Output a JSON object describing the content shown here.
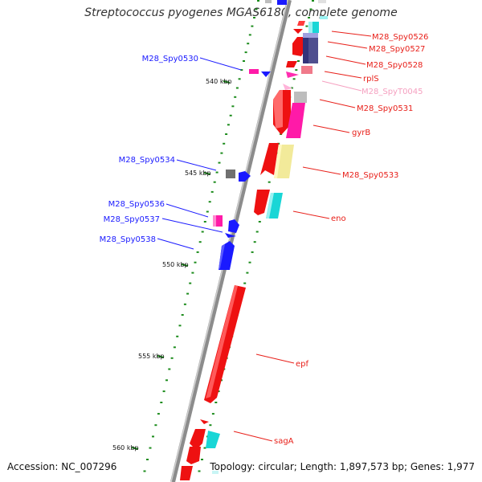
{
  "title": "Streptococcus pyogenes MGAS6180, complete genome",
  "accession": "Accession: NC_007296",
  "topology": "Topology: circular; Length: 1,897,573 bp; Genes: 1,977",
  "kbp_labels": [
    {
      "text": "540 kbp",
      "pos": 540
    },
    {
      "text": "545 kbp",
      "pos": 545
    },
    {
      "text": "550 kbp",
      "pos": 550
    },
    {
      "text": "555 kbp",
      "pos": 555
    },
    {
      "text": "560 kbp",
      "pos": 560
    }
  ],
  "left_labels": [
    {
      "text": "M28_Spy0530",
      "color": "#1a1aff"
    },
    {
      "text": "M28_Spy0534",
      "color": "#1a1aff"
    },
    {
      "text": "M28_Spy0536",
      "color": "#1a1aff"
    },
    {
      "text": "M28_Spy0537",
      "color": "#1a1aff"
    },
    {
      "text": "M28_Spy0538",
      "color": "#1a1aff"
    }
  ],
  "right_labels": [
    {
      "text": "M28_Spy0526",
      "color": "#e8201a"
    },
    {
      "text": "M28_Spy0527",
      "color": "#e8201a"
    },
    {
      "text": "M28_Spy0528",
      "color": "#e8201a"
    },
    {
      "text": "rplS",
      "color": "#e8201a"
    },
    {
      "text": "M28_SpyT0045",
      "color": "#f5a0c0"
    },
    {
      "text": "M28_Spy0531",
      "color": "#e8201a"
    },
    {
      "text": "gyrB",
      "color": "#e8201a"
    },
    {
      "text": "M28_Spy0533",
      "color": "#e8201a"
    },
    {
      "text": "eno",
      "color": "#e8201a"
    },
    {
      "text": "epf",
      "color": "#e8201a"
    },
    {
      "text": "sagA",
      "color": "#e8201a"
    }
  ],
  "colors": {
    "backbone": "#8c8c8c",
    "tick": "#1c8c1c",
    "red": "#ee1111",
    "blue": "#1a1aff",
    "cyan": "#19d6d6",
    "magenta": "#ff1aa8",
    "navy": "#33337a",
    "khaki": "#f2ea9a",
    "gray": "#bdbdbd",
    "dark_gray": "#707070",
    "pink": "#f07a8a",
    "label_line_red": "#e8201a",
    "label_line_blue": "#1a1aff"
  }
}
